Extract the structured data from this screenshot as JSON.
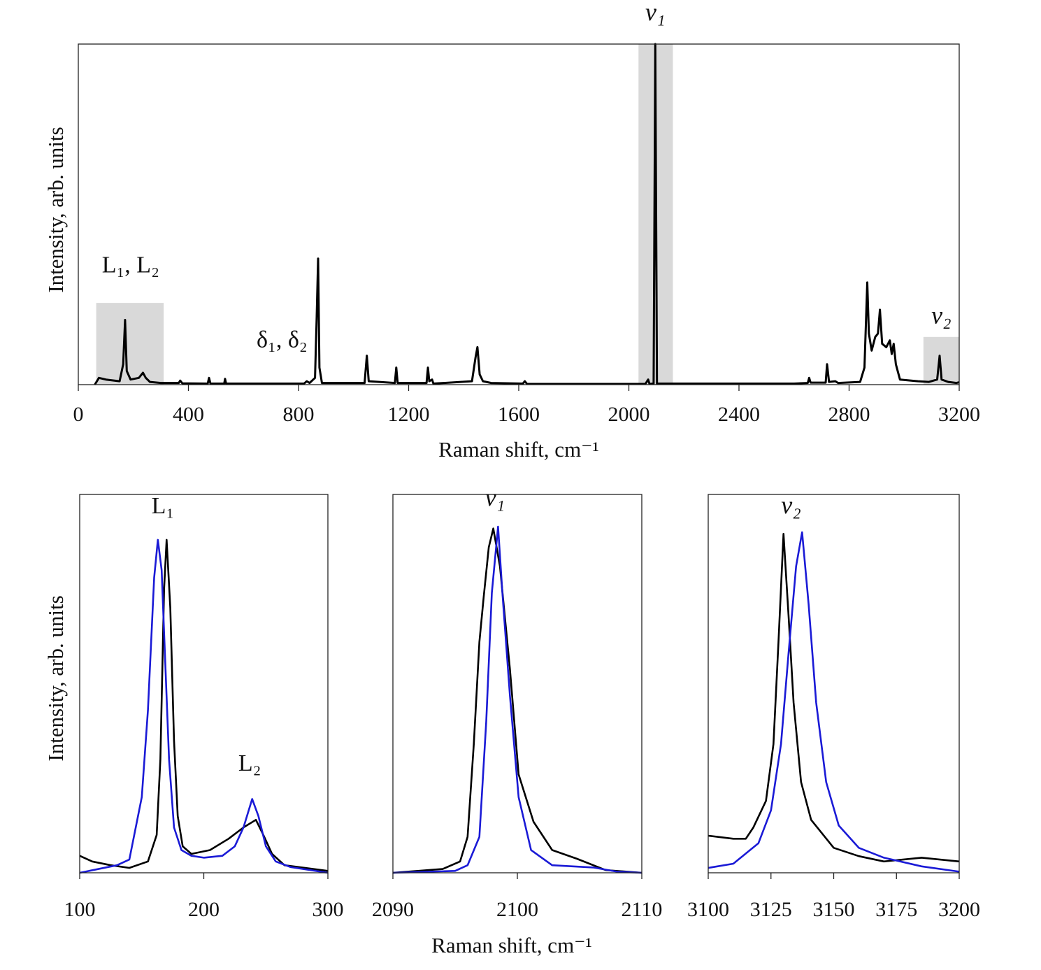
{
  "chart_data": [
    {
      "type": "line",
      "xlabel": "Raman shift, cm⁻¹",
      "ylabel": "Intensity, arb. units",
      "xlim": [
        0,
        3200
      ],
      "ylim": [
        0,
        1
      ],
      "xticks": [
        0,
        400,
        800,
        1200,
        1600,
        2000,
        2400,
        2800,
        3200
      ],
      "yticks": [],
      "grid": false,
      "shaded_regions": [
        {
          "x": [
            65,
            310
          ],
          "ymax": 0.24
        },
        {
          "x": [
            2035,
            2160
          ],
          "ymax": 1.0
        },
        {
          "x": [
            3070,
            3200
          ],
          "ymax": 0.14
        }
      ],
      "annotations": [
        {
          "text": "L₁, L₂",
          "x": 190,
          "y": 0.33
        },
        {
          "text": "δ₁, δ₂",
          "x": 740,
          "y": 0.11
        },
        {
          "text": "ν₁",
          "x": 2096,
          "y": 1.07
        },
        {
          "text": "ν₂",
          "x": 3135,
          "y": 0.18
        }
      ],
      "series": [
        {
          "color": "#000000",
          "points": [
            [
              60,
              0
            ],
            [
              75,
              0.02
            ],
            [
              100,
              0.015
            ],
            [
              150,
              0.01
            ],
            [
              163,
              0.06
            ],
            [
              170,
              0.19
            ],
            [
              176,
              0.04
            ],
            [
              190,
              0.015
            ],
            [
              220,
              0.02
            ],
            [
              235,
              0.035
            ],
            [
              245,
              0.02
            ],
            [
              260,
              0.008
            ],
            [
              300,
              0.005
            ],
            [
              365,
              0.005
            ],
            [
              370,
              0.012
            ],
            [
              378,
              0.004
            ],
            [
              470,
              0.003
            ],
            [
              475,
              0.02
            ],
            [
              480,
              0.003
            ],
            [
              530,
              0.003
            ],
            [
              533,
              0.017
            ],
            [
              537,
              0.003
            ],
            [
              820,
              0.003
            ],
            [
              830,
              0.01
            ],
            [
              840,
              0.005
            ],
            [
              860,
              0.02
            ],
            [
              866,
              0.2
            ],
            [
              871,
              0.37
            ],
            [
              876,
              0.05
            ],
            [
              885,
              0.005
            ],
            [
              1040,
              0.005
            ],
            [
              1048,
              0.085
            ],
            [
              1055,
              0.01
            ],
            [
              1150,
              0.005
            ],
            [
              1155,
              0.05
            ],
            [
              1160,
              0.005
            ],
            [
              1265,
              0.005
            ],
            [
              1270,
              0.05
            ],
            [
              1275,
              0.01
            ],
            [
              1285,
              0.015
            ],
            [
              1290,
              0.003
            ],
            [
              1430,
              0.01
            ],
            [
              1443,
              0.08
            ],
            [
              1450,
              0.11
            ],
            [
              1458,
              0.03
            ],
            [
              1470,
              0.01
            ],
            [
              1500,
              0.005
            ],
            [
              1615,
              0.003
            ],
            [
              1622,
              0.01
            ],
            [
              1630,
              0.002
            ],
            [
              2060,
              0.002
            ],
            [
              2070,
              0.015
            ],
            [
              2075,
              0.002
            ],
            [
              2090,
              0.003
            ],
            [
              2096,
              1.0
            ],
            [
              2102,
              0.003
            ],
            [
              2600,
              0.003
            ],
            [
              2650,
              0.005
            ],
            [
              2655,
              0.02
            ],
            [
              2660,
              0.006
            ],
            [
              2715,
              0.006
            ],
            [
              2720,
              0.06
            ],
            [
              2727,
              0.008
            ],
            [
              2750,
              0.01
            ],
            [
              2760,
              0.005
            ],
            [
              2840,
              0.008
            ],
            [
              2856,
              0.05
            ],
            [
              2866,
              0.3
            ],
            [
              2872,
              0.15
            ],
            [
              2882,
              0.1
            ],
            [
              2895,
              0.14
            ],
            [
              2905,
              0.15
            ],
            [
              2912,
              0.22
            ],
            [
              2920,
              0.12
            ],
            [
              2935,
              0.11
            ],
            [
              2948,
              0.13
            ],
            [
              2955,
              0.09
            ],
            [
              2962,
              0.12
            ],
            [
              2970,
              0.06
            ],
            [
              2985,
              0.015
            ],
            [
              3050,
              0.01
            ],
            [
              3090,
              0.008
            ],
            [
              3120,
              0.015
            ],
            [
              3129,
              0.085
            ],
            [
              3136,
              0.015
            ],
            [
              3160,
              0.008
            ],
            [
              3190,
              0.005
            ],
            [
              3200,
              0.007
            ]
          ]
        }
      ]
    },
    {
      "type": "line",
      "xlim": [
        100,
        300
      ],
      "ylim": [
        0,
        1
      ],
      "xticks": [
        100,
        200,
        300
      ],
      "annotations": [
        {
          "text": "L₁",
          "x": 167,
          "y": 0.95
        },
        {
          "text": "L₂",
          "x": 237,
          "y": 0.27
        }
      ],
      "series": [
        {
          "color": "#000000",
          "points": [
            [
              100,
              0.045
            ],
            [
              110,
              0.03
            ],
            [
              125,
              0.02
            ],
            [
              140,
              0.013
            ],
            [
              155,
              0.03
            ],
            [
              162,
              0.1
            ],
            [
              165,
              0.3
            ],
            [
              168,
              0.75
            ],
            [
              170,
              0.88
            ],
            [
              173,
              0.7
            ],
            [
              176,
              0.35
            ],
            [
              179,
              0.15
            ],
            [
              183,
              0.07
            ],
            [
              190,
              0.05
            ],
            [
              205,
              0.06
            ],
            [
              220,
              0.09
            ],
            [
              232,
              0.12
            ],
            [
              242,
              0.14
            ],
            [
              248,
              0.1
            ],
            [
              255,
              0.05
            ],
            [
              265,
              0.02
            ],
            [
              300,
              0.005
            ]
          ]
        },
        {
          "color": "#1a1ad6",
          "points": [
            [
              100,
              0.0
            ],
            [
              130,
              0.02
            ],
            [
              140,
              0.035
            ],
            [
              150,
              0.2
            ],
            [
              155,
              0.43
            ],
            [
              160,
              0.78
            ],
            [
              163,
              0.88
            ],
            [
              166,
              0.8
            ],
            [
              169,
              0.55
            ],
            [
              172,
              0.3
            ],
            [
              176,
              0.12
            ],
            [
              182,
              0.06
            ],
            [
              190,
              0.045
            ],
            [
              200,
              0.04
            ],
            [
              215,
              0.045
            ],
            [
              225,
              0.07
            ],
            [
              232,
              0.12
            ],
            [
              239,
              0.195
            ],
            [
              244,
              0.15
            ],
            [
              250,
              0.07
            ],
            [
              258,
              0.03
            ],
            [
              270,
              0.015
            ],
            [
              300,
              0.0
            ]
          ]
        }
      ]
    },
    {
      "type": "line",
      "xlim": [
        2090,
        2110
      ],
      "ylim": [
        0,
        1
      ],
      "xticks": [
        2090,
        2100,
        2110
      ],
      "annotations": [
        {
          "text": "ν₁",
          "x": 2098.2,
          "y": 0.97
        }
      ],
      "series": [
        {
          "color": "#000000",
          "points": [
            [
              2090,
              0
            ],
            [
              2094,
              0.01
            ],
            [
              2095.4,
              0.03
            ],
            [
              2096,
              0.095
            ],
            [
              2096.5,
              0.34
            ],
            [
              2096.95,
              0.61
            ],
            [
              2097.3,
              0.73
            ],
            [
              2097.7,
              0.86
            ],
            [
              2098.07,
              0.91
            ],
            [
              2098.6,
              0.81
            ],
            [
              2099.4,
              0.54
            ],
            [
              2100.1,
              0.26
            ],
            [
              2101.3,
              0.135
            ],
            [
              2102.8,
              0.06
            ],
            [
              2104.8,
              0.037
            ],
            [
              2107.1,
              0.007
            ],
            [
              2110,
              0
            ]
          ]
        },
        {
          "color": "#1a1ad6",
          "points": [
            [
              2090,
              0
            ],
            [
              2095,
              0.005
            ],
            [
              2096,
              0.02
            ],
            [
              2096.95,
              0.095
            ],
            [
              2097.5,
              0.4
            ],
            [
              2097.95,
              0.74
            ],
            [
              2098.45,
              0.915
            ],
            [
              2098.8,
              0.74
            ],
            [
              2099.4,
              0.47
            ],
            [
              2100.1,
              0.2
            ],
            [
              2101.1,
              0.06
            ],
            [
              2102.8,
              0.02
            ],
            [
              2106.1,
              0.014
            ],
            [
              2108,
              0.003
            ],
            [
              2110,
              0
            ]
          ]
        }
      ]
    },
    {
      "type": "line",
      "xlim": [
        3100,
        3200
      ],
      "ylim": [
        0,
        1
      ],
      "xticks": [
        3100,
        3125,
        3150,
        3175,
        3200
      ],
      "annotations": [
        {
          "text": "ν₂",
          "x": 3133,
          "y": 0.95
        }
      ],
      "series": [
        {
          "color": "#000000",
          "points": [
            [
              3100,
              0.098
            ],
            [
              3110,
              0.09
            ],
            [
              3115,
              0.09
            ],
            [
              3118,
              0.12
            ],
            [
              3123,
              0.19
            ],
            [
              3126,
              0.34
            ],
            [
              3128,
              0.61
            ],
            [
              3130,
              0.896
            ],
            [
              3132,
              0.68
            ],
            [
              3134,
              0.45
            ],
            [
              3137,
              0.24
            ],
            [
              3141,
              0.14
            ],
            [
              3150,
              0.066
            ],
            [
              3160,
              0.044
            ],
            [
              3170,
              0.03
            ],
            [
              3185,
              0.04
            ],
            [
              3200,
              0.03
            ]
          ]
        },
        {
          "color": "#1a1ad6",
          "points": [
            [
              3100,
              0.013
            ],
            [
              3110,
              0.024
            ],
            [
              3120,
              0.078
            ],
            [
              3125,
              0.165
            ],
            [
              3129,
              0.34
            ],
            [
              3132,
              0.58
            ],
            [
              3135,
              0.81
            ],
            [
              3137.4,
              0.9
            ],
            [
              3140,
              0.71
            ],
            [
              3143,
              0.45
            ],
            [
              3147,
              0.24
            ],
            [
              3152,
              0.125
            ],
            [
              3160,
              0.066
            ],
            [
              3170,
              0.04
            ],
            [
              3185,
              0.017
            ],
            [
              3200,
              0.003
            ]
          ]
        }
      ]
    }
  ],
  "bottom_labels": {
    "ylabel": "Intensity, arb. units",
    "xlabel": "Raman shift, cm⁻¹"
  }
}
